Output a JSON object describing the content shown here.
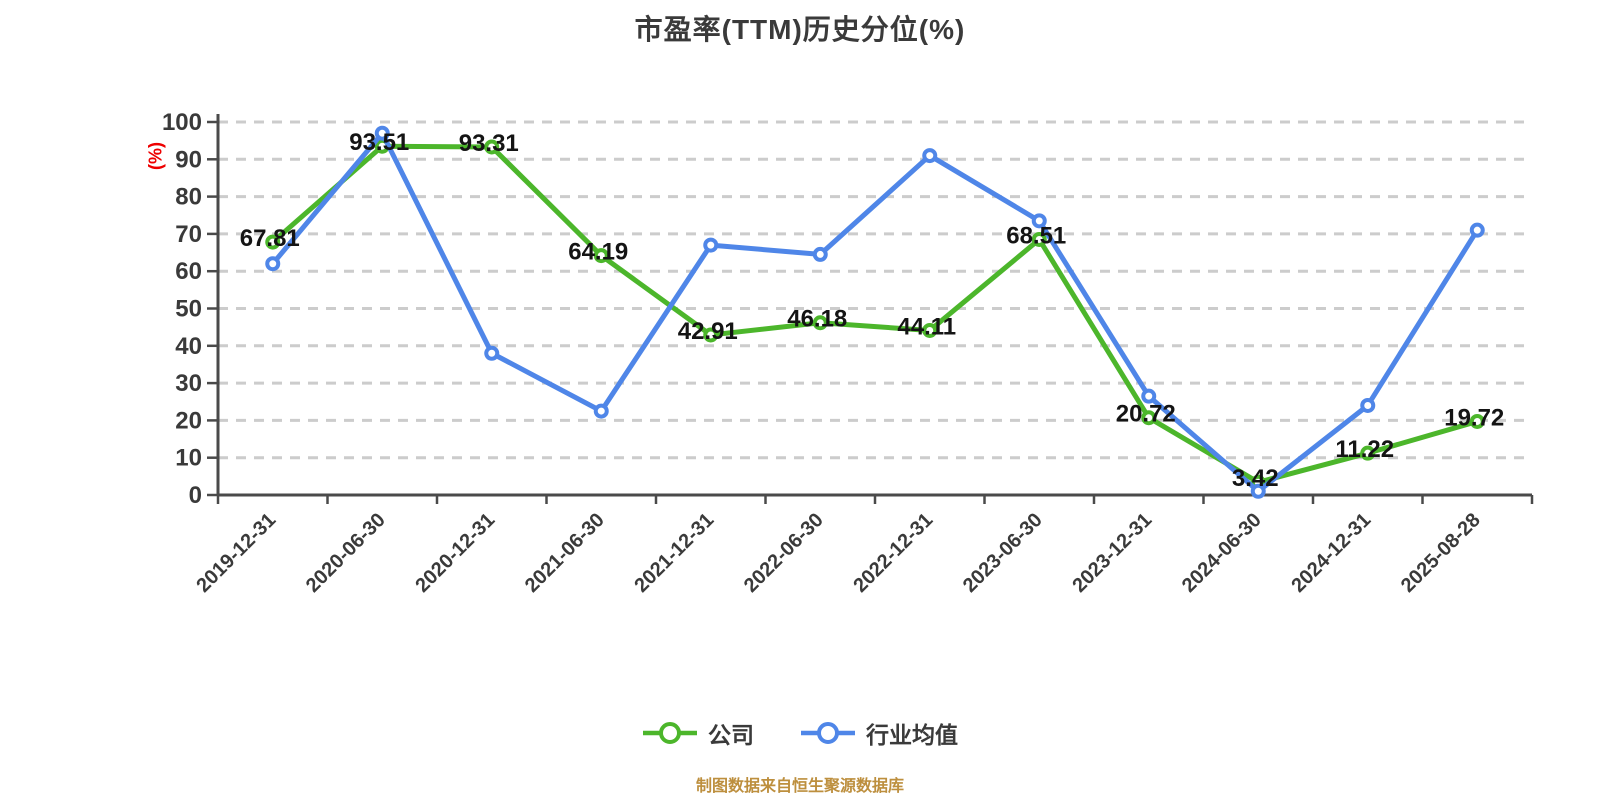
{
  "title": "市盈率(TTM)历史分位(%)",
  "y_axis_unit": "(%)",
  "footer": "制图数据来自恒生聚源数据库",
  "legend": [
    {
      "label": "公司",
      "color": "#4cb62b"
    },
    {
      "label": "行业均值",
      "color": "#4f86e8"
    }
  ],
  "colors": {
    "background": "#ffffff",
    "grid": "#cccccc",
    "axis": "#4a4a4a",
    "axis_text": "#3a3a3a",
    "data_label": "#141414",
    "y_unit_label": "#ee0000",
    "footer_text": "#bd8f3e",
    "company_series": "#4cb62b",
    "industry_series": "#4f86e8"
  },
  "chart_data": {
    "type": "line",
    "title": "市盈率(TTM)历史分位(%)",
    "xlabel": "",
    "ylabel": "(%)",
    "ylim": [
      0,
      100
    ],
    "y_ticks": [
      0,
      10,
      20,
      30,
      40,
      50,
      60,
      70,
      80,
      90,
      100
    ],
    "grid": "horizontal-dashed",
    "legend_position": "bottom",
    "categories": [
      "2019-12-31",
      "2020-06-30",
      "2020-12-31",
      "2021-06-30",
      "2021-12-31",
      "2022-06-30",
      "2022-12-31",
      "2023-06-30",
      "2023-12-31",
      "2024-06-30",
      "2024-12-31",
      "2025-08-28"
    ],
    "series": [
      {
        "name": "公司",
        "color": "#4cb62b",
        "show_labels": true,
        "values": [
          67.81,
          93.51,
          93.31,
          64.19,
          42.91,
          46.18,
          44.11,
          68.51,
          20.72,
          3.42,
          11.22,
          19.72
        ]
      },
      {
        "name": "行业均值",
        "color": "#4f86e8",
        "show_labels": false,
        "values": [
          62,
          97,
          38,
          22.5,
          67,
          64.5,
          91,
          73.5,
          26.5,
          1,
          24,
          71
        ]
      }
    ]
  }
}
